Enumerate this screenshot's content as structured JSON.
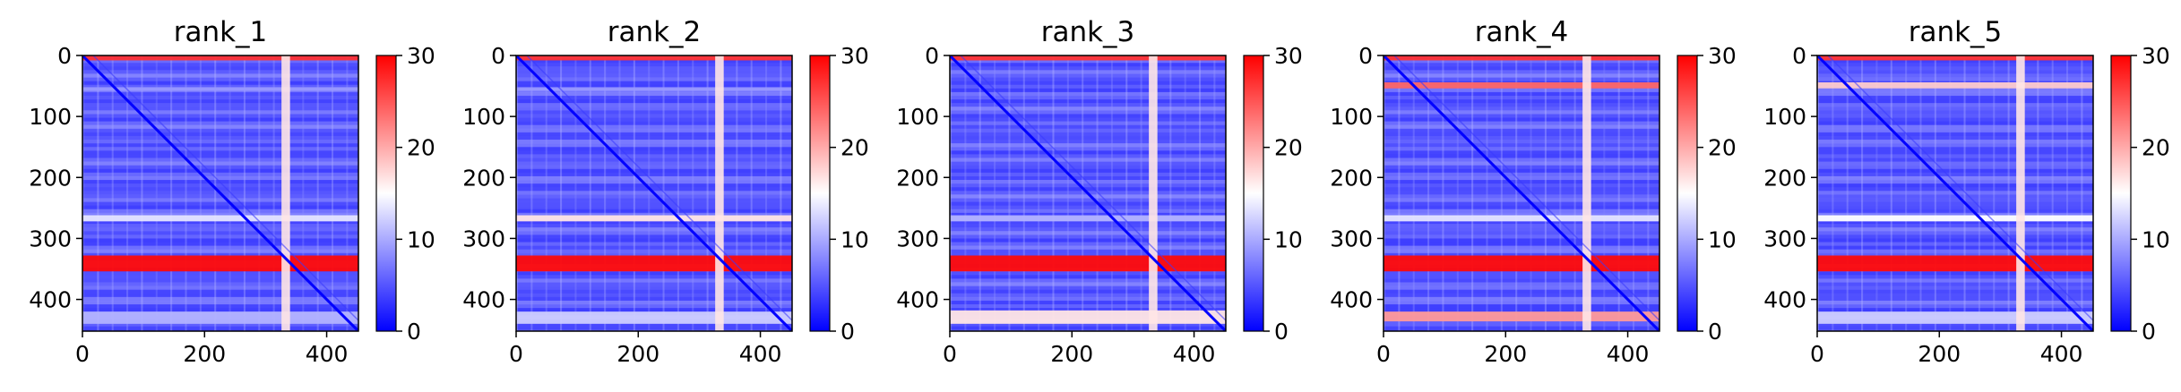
{
  "chart_data": [
    {
      "type": "heatmap",
      "title": "rank_1",
      "x_ticks": [
        "0",
        "200",
        "400"
      ],
      "y_ticks": [
        "0",
        "100",
        "200",
        "300",
        "400"
      ],
      "xlim": [
        0,
        452
      ],
      "ylim": [
        452,
        0
      ],
      "colorbar": {
        "range": [
          0,
          30
        ],
        "ticks": [
          "0",
          "10",
          "20",
          "30"
        ],
        "colors": [
          "#0000ff",
          "#ffffff",
          "#ff0000"
        ]
      },
      "hot_rows": [
        [
          0,
          8,
          0.9
        ],
        [
          328,
          354,
          0.98
        ],
        [
          262,
          272,
          0.45
        ],
        [
          52,
          58,
          0.3
        ],
        [
          420,
          440,
          0.35
        ]
      ],
      "hot_cols": [
        [
          326,
          340,
          0.55
        ]
      ],
      "diagonal": true
    },
    {
      "type": "heatmap",
      "title": "rank_2",
      "x_ticks": [
        "0",
        "200",
        "400"
      ],
      "y_ticks": [
        "0",
        "100",
        "200",
        "300",
        "400"
      ],
      "xlim": [
        0,
        452
      ],
      "ylim": [
        452,
        0
      ],
      "colorbar": {
        "range": [
          0,
          30
        ],
        "ticks": [
          "0",
          "10",
          "20",
          "30"
        ],
        "colors": [
          "#0000ff",
          "#ffffff",
          "#ff0000"
        ]
      },
      "hot_rows": [
        [
          0,
          8,
          0.9
        ],
        [
          328,
          354,
          0.98
        ],
        [
          262,
          272,
          0.55
        ],
        [
          52,
          58,
          0.3
        ],
        [
          420,
          440,
          0.4
        ]
      ],
      "hot_cols": [
        [
          326,
          340,
          0.55
        ]
      ],
      "diagonal": true
    },
    {
      "type": "heatmap",
      "title": "rank_3",
      "x_ticks": [
        "0",
        "200",
        "400"
      ],
      "y_ticks": [
        "0",
        "100",
        "200",
        "300",
        "400"
      ],
      "xlim": [
        0,
        452
      ],
      "ylim": [
        452,
        0
      ],
      "colorbar": {
        "range": [
          0,
          30
        ],
        "ticks": [
          "0",
          "10",
          "20",
          "30"
        ],
        "colors": [
          "#0000ff",
          "#ffffff",
          "#ff0000"
        ]
      },
      "hot_rows": [
        [
          0,
          8,
          0.9
        ],
        [
          328,
          354,
          0.98
        ],
        [
          262,
          272,
          0.35
        ],
        [
          418,
          440,
          0.55
        ]
      ],
      "hot_cols": [
        [
          326,
          340,
          0.55
        ]
      ],
      "diagonal": true
    },
    {
      "type": "heatmap",
      "title": "rank_4",
      "x_ticks": [
        "0",
        "200",
        "400"
      ],
      "y_ticks": [
        "0",
        "100",
        "200",
        "300",
        "400"
      ],
      "xlim": [
        0,
        452
      ],
      "ylim": [
        452,
        0
      ],
      "colorbar": {
        "range": [
          0,
          30
        ],
        "ticks": [
          "0",
          "10",
          "20",
          "30"
        ],
        "colors": [
          "#0000ff",
          "#ffffff",
          "#ff0000"
        ]
      },
      "hot_rows": [
        [
          0,
          8,
          0.9
        ],
        [
          44,
          54,
          0.8
        ],
        [
          328,
          354,
          0.98
        ],
        [
          262,
          272,
          0.45
        ],
        [
          420,
          436,
          0.7
        ]
      ],
      "hot_cols": [
        [
          326,
          340,
          0.55
        ]
      ],
      "diagonal": true
    },
    {
      "type": "heatmap",
      "title": "rank_5",
      "x_ticks": [
        "0",
        "200",
        "400"
      ],
      "y_ticks": [
        "0",
        "100",
        "200",
        "300",
        "400"
      ],
      "xlim": [
        0,
        452
      ],
      "ylim": [
        452,
        0
      ],
      "colorbar": {
        "range": [
          0,
          30
        ],
        "ticks": [
          "0",
          "10",
          "20",
          "30"
        ],
        "colors": [
          "#0000ff",
          "#ffffff",
          "#ff0000"
        ]
      },
      "hot_rows": [
        [
          0,
          8,
          0.9
        ],
        [
          44,
          54,
          0.6
        ],
        [
          328,
          354,
          0.98
        ],
        [
          262,
          272,
          0.5
        ],
        [
          420,
          440,
          0.4
        ]
      ],
      "hot_cols": [
        [
          326,
          340,
          0.55
        ]
      ],
      "diagonal": true
    }
  ]
}
